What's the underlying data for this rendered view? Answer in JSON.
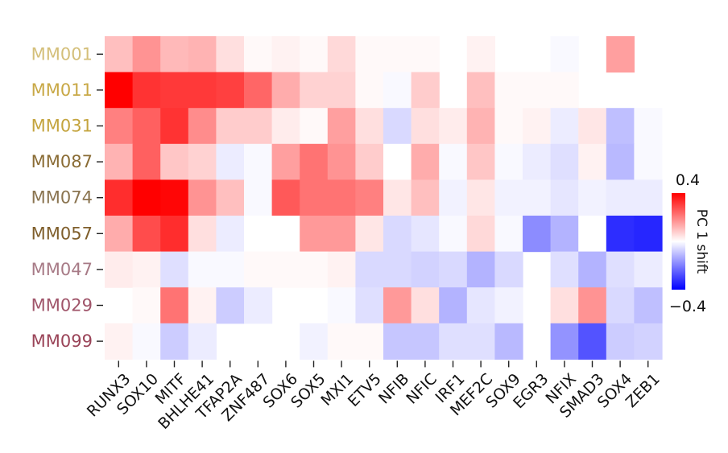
{
  "chart_data": {
    "type": "heatmap",
    "title": "",
    "xlabel": "",
    "ylabel": "",
    "columns": [
      "RUNX3",
      "SOX10",
      "MITF",
      "BHLHE41",
      "TFAP2A",
      "ZNF487",
      "SOX6",
      "SOX5",
      "MXI1",
      "ETV5",
      "NFIB",
      "NFIC",
      "IRF1",
      "MEF2C",
      "SOX9",
      "EGR3",
      "NFIX",
      "SMAD3",
      "SOX4",
      "ZEB1"
    ],
    "rows": [
      {
        "label": "MM001",
        "color": "#d4bf7a",
        "values": [
          0.1,
          0.17,
          0.11,
          0.12,
          0.05,
          0.01,
          0.02,
          0.01,
          0.06,
          0.01,
          0.01,
          0.01,
          null,
          0.02,
          null,
          null,
          -0.01,
          null,
          0.15,
          null
        ]
      },
      {
        "label": "MM011",
        "color": "#c8a846",
        "values": [
          0.4,
          0.32,
          0.31,
          0.31,
          0.3,
          0.24,
          0.13,
          0.07,
          0.07,
          0.01,
          -0.01,
          0.08,
          null,
          0.1,
          0.01,
          0.01,
          0.01,
          null,
          null,
          null
        ]
      },
      {
        "label": "MM031",
        "color": "#c4a43e",
        "values": [
          0.2,
          0.25,
          0.32,
          0.18,
          0.08,
          0.08,
          0.03,
          0.01,
          0.15,
          0.05,
          -0.06,
          0.05,
          0.03,
          0.12,
          0.01,
          0.02,
          -0.03,
          0.04,
          -0.1,
          -0.01
        ]
      },
      {
        "label": "MM087",
        "color": "#8a6c35",
        "values": [
          0.12,
          0.25,
          0.09,
          0.07,
          -0.03,
          -0.01,
          0.15,
          0.22,
          0.17,
          0.08,
          0.0,
          0.13,
          -0.01,
          0.09,
          -0.01,
          -0.03,
          -0.05,
          0.02,
          -0.11,
          -0.01
        ]
      },
      {
        "label": "MM074",
        "color": "#8a7450",
        "values": [
          0.33,
          0.4,
          0.39,
          0.17,
          0.1,
          -0.01,
          0.26,
          0.22,
          0.22,
          0.2,
          0.04,
          0.1,
          -0.02,
          0.04,
          -0.02,
          -0.02,
          -0.04,
          -0.02,
          -0.03,
          -0.03
        ]
      },
      {
        "label": "MM057",
        "color": "#7f5e2b",
        "values": [
          0.13,
          0.28,
          0.33,
          0.05,
          -0.03,
          0.0,
          0.0,
          0.16,
          0.16,
          0.04,
          -0.06,
          -0.04,
          -0.01,
          0.06,
          -0.01,
          -0.18,
          -0.12,
          0.0,
          -0.33,
          -0.34
        ]
      },
      {
        "label": "MM047",
        "color": "#a77a86",
        "values": [
          0.03,
          0.02,
          -0.05,
          -0.01,
          -0.01,
          0.01,
          0.01,
          0.01,
          0.02,
          -0.06,
          -0.06,
          -0.07,
          -0.06,
          -0.12,
          -0.06,
          null,
          -0.05,
          -0.12,
          -0.05,
          -0.03
        ]
      },
      {
        "label": "MM029",
        "color": "#a0556a",
        "values": [
          null,
          0.01,
          0.22,
          0.02,
          -0.08,
          -0.03,
          null,
          null,
          -0.01,
          -0.05,
          0.16,
          0.05,
          -0.12,
          -0.04,
          -0.02,
          null,
          0.05,
          0.17,
          -0.06,
          -0.1
        ]
      },
      {
        "label": "MM099",
        "color": "#9a4458",
        "values": [
          0.02,
          -0.01,
          -0.08,
          -0.03,
          null,
          null,
          null,
          -0.02,
          0.01,
          0.01,
          -0.09,
          -0.09,
          -0.05,
          -0.05,
          -0.11,
          null,
          -0.17,
          -0.27,
          -0.08,
          -0.07
        ]
      }
    ],
    "colorbar": {
      "label": "PC 1 shift",
      "min": -0.4,
      "max": 0.4,
      "min_label": "−0.4",
      "max_label": "0.4",
      "low_color": "#0000ff",
      "mid_color": "#ffffff",
      "high_color": "#ff0000"
    }
  }
}
